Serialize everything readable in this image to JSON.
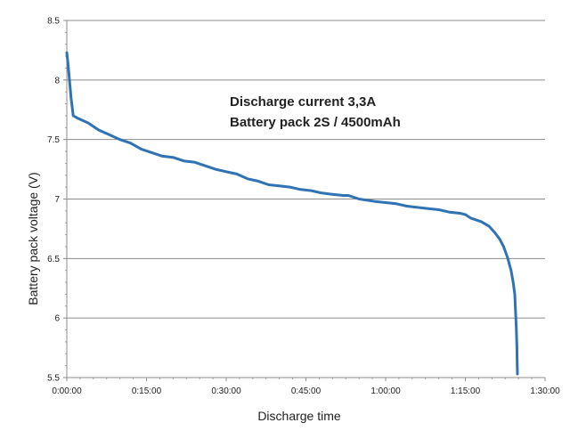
{
  "chart_data": {
    "type": "line",
    "title": "",
    "xlabel": "Discharge time",
    "ylabel": "Battery pack voltage (V)",
    "x_unit": "minutes",
    "xlim": [
      0,
      90
    ],
    "ylim": [
      5.5,
      8.5
    ],
    "x_ticks": [
      {
        "value": 0,
        "label": "0:00:00"
      },
      {
        "value": 15,
        "label": "0:15:00"
      },
      {
        "value": 30,
        "label": "0:30:00"
      },
      {
        "value": 45,
        "label": "0:45:00"
      },
      {
        "value": 60,
        "label": "1:00:00"
      },
      {
        "value": 75,
        "label": "1:15:00"
      },
      {
        "value": 90,
        "label": "1:30:00"
      }
    ],
    "y_ticks": [
      {
        "value": 8.5,
        "label": "8.5"
      },
      {
        "value": 8,
        "label": "8"
      },
      {
        "value": 7.5,
        "label": "7.5"
      },
      {
        "value": 7,
        "label": "7"
      },
      {
        "value": 6.5,
        "label": "6.5"
      },
      {
        "value": 6,
        "label": "6"
      },
      {
        "value": 5.5,
        "label": "5.5"
      }
    ],
    "grid": "horizontal",
    "annotations": [
      "Discharge current 3,3A",
      "Battery pack 2S / 4500mAh"
    ],
    "colors": {
      "series": "#2f73b4",
      "grid": "#8c8c8c",
      "axis": "#8c8c8c"
    },
    "series": [
      {
        "x": [
          0,
          0.2,
          0.5,
          0.8,
          1.2,
          2,
          4,
          6,
          8,
          10,
          12,
          14,
          16,
          18,
          20,
          22,
          24,
          26,
          28,
          30,
          32,
          34,
          36,
          38,
          40,
          42,
          44,
          46,
          48,
          50,
          52,
          53,
          55,
          58,
          60,
          62,
          64,
          66,
          68,
          70,
          72,
          74,
          75,
          76,
          78,
          79.5,
          80.5,
          81.5,
          82.2,
          83,
          83.6,
          84,
          84.3,
          84.5,
          84.6,
          84.7,
          84.75,
          84.8
        ],
        "y": [
          8.23,
          8.15,
          8.0,
          7.85,
          7.7,
          7.68,
          7.64,
          7.58,
          7.54,
          7.5,
          7.47,
          7.42,
          7.39,
          7.36,
          7.35,
          7.32,
          7.31,
          7.28,
          7.25,
          7.23,
          7.21,
          7.17,
          7.15,
          7.12,
          7.11,
          7.1,
          7.08,
          7.07,
          7.05,
          7.04,
          7.03,
          7.03,
          7.0,
          6.98,
          6.97,
          6.96,
          6.94,
          6.93,
          6.92,
          6.91,
          6.89,
          6.88,
          6.87,
          6.84,
          6.81,
          6.77,
          6.72,
          6.66,
          6.6,
          6.5,
          6.4,
          6.3,
          6.2,
          6.0,
          5.9,
          5.75,
          5.62,
          5.53
        ]
      }
    ]
  }
}
